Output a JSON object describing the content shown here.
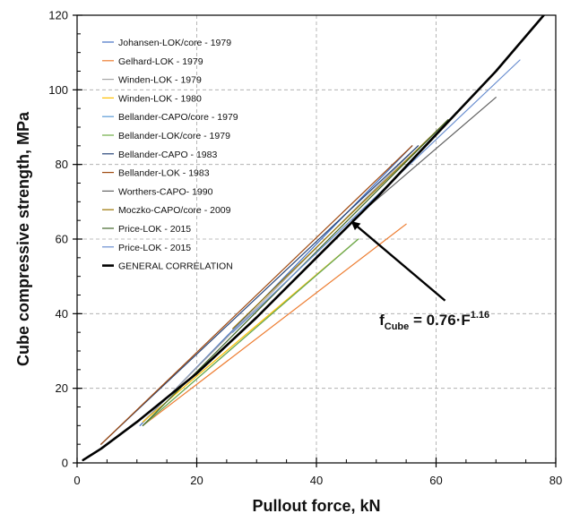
{
  "chart_data": {
    "type": "line",
    "xlabel": "Pullout force, kN",
    "ylabel": "Cube compressive strength, MPa",
    "xlim": [
      0,
      80
    ],
    "ylim": [
      0,
      120
    ],
    "x_ticks": [
      "0",
      "20",
      "40",
      "60",
      "80"
    ],
    "y_ticks": [
      "0",
      "20",
      "40",
      "60",
      "80",
      "100",
      "120"
    ],
    "grid": "dashed",
    "legend_position": "top-left",
    "series": [
      {
        "name": "Johansen-LOK/core - 1979",
        "color": "#4472C4",
        "width": 1.2,
        "points": [
          [
            10.5,
            10
          ],
          [
            56,
            85
          ]
        ]
      },
      {
        "name": "Gelhard-LOK - 1979",
        "color": "#ED7D31",
        "width": 1.2,
        "points": [
          [
            11,
            10
          ],
          [
            55,
            64
          ]
        ]
      },
      {
        "name": "Winden-LOK - 1979",
        "color": "#A5A5A5",
        "width": 1.2,
        "points": [
          [
            11,
            11
          ],
          [
            57,
            85
          ]
        ]
      },
      {
        "name": "Winden-LOK - 1980",
        "color": "#FFC000",
        "width": 1.2,
        "points": [
          [
            11,
            11
          ],
          [
            47,
            60
          ]
        ]
      },
      {
        "name": "Bellander-CAPO/core - 1979",
        "color": "#5B9BD5",
        "width": 1.2,
        "points": [
          [
            11,
            10
          ],
          [
            47,
            60
          ]
        ]
      },
      {
        "name": "Bellander-LOK/core - 1979",
        "color": "#70AD47",
        "width": 1.2,
        "points": [
          [
            11,
            10
          ],
          [
            47,
            60
          ]
        ]
      },
      {
        "name": "Bellander-CAPO - 1983",
        "color": "#264478",
        "width": 1.2,
        "points": [
          [
            4,
            5
          ],
          [
            57,
            85
          ]
        ]
      },
      {
        "name": "Bellander-LOK - 1983",
        "color": "#9E480E",
        "width": 1.2,
        "points": [
          [
            4,
            5
          ],
          [
            56,
            85
          ]
        ]
      },
      {
        "name": "Worthers-CAPO- 1990",
        "color": "#636363",
        "width": 1.2,
        "points": [
          [
            46,
            65
          ],
          [
            70,
            98
          ]
        ]
      },
      {
        "name": "Moczko-CAPO/core - 2009",
        "color": "#997300",
        "width": 1.2,
        "points": [
          [
            26,
            36
          ],
          [
            62,
            92
          ]
        ]
      },
      {
        "name": "Price-LOK - 2015",
        "color": "#43682B",
        "width": 1.2,
        "points": [
          [
            11,
            10
          ],
          [
            62,
            92
          ]
        ]
      },
      {
        "name": "Price-LOK - 2015",
        "color": "#698ED0",
        "width": 1.2,
        "points": [
          [
            26,
            35
          ],
          [
            74,
            108
          ]
        ]
      },
      {
        "name": "GENERAL CORRELATION",
        "color": "#000000",
        "width": 2.6,
        "points": [
          [
            1,
            0.76
          ],
          [
            4,
            3.8
          ],
          [
            10,
            11
          ],
          [
            20,
            24
          ],
          [
            30,
            39
          ],
          [
            40,
            55
          ],
          [
            50,
            71
          ],
          [
            60,
            88
          ],
          [
            70,
            105
          ],
          [
            78,
            120
          ]
        ]
      }
    ],
    "annotation": {
      "main": "f",
      "sub": "Cube",
      "rest": " = 0.76·F",
      "sup": "1.16",
      "arrow_from": [
        61.5,
        43.5
      ],
      "arrow_to": [
        46,
        64.5
      ],
      "text_anchor": [
        50.5,
        37
      ]
    }
  }
}
